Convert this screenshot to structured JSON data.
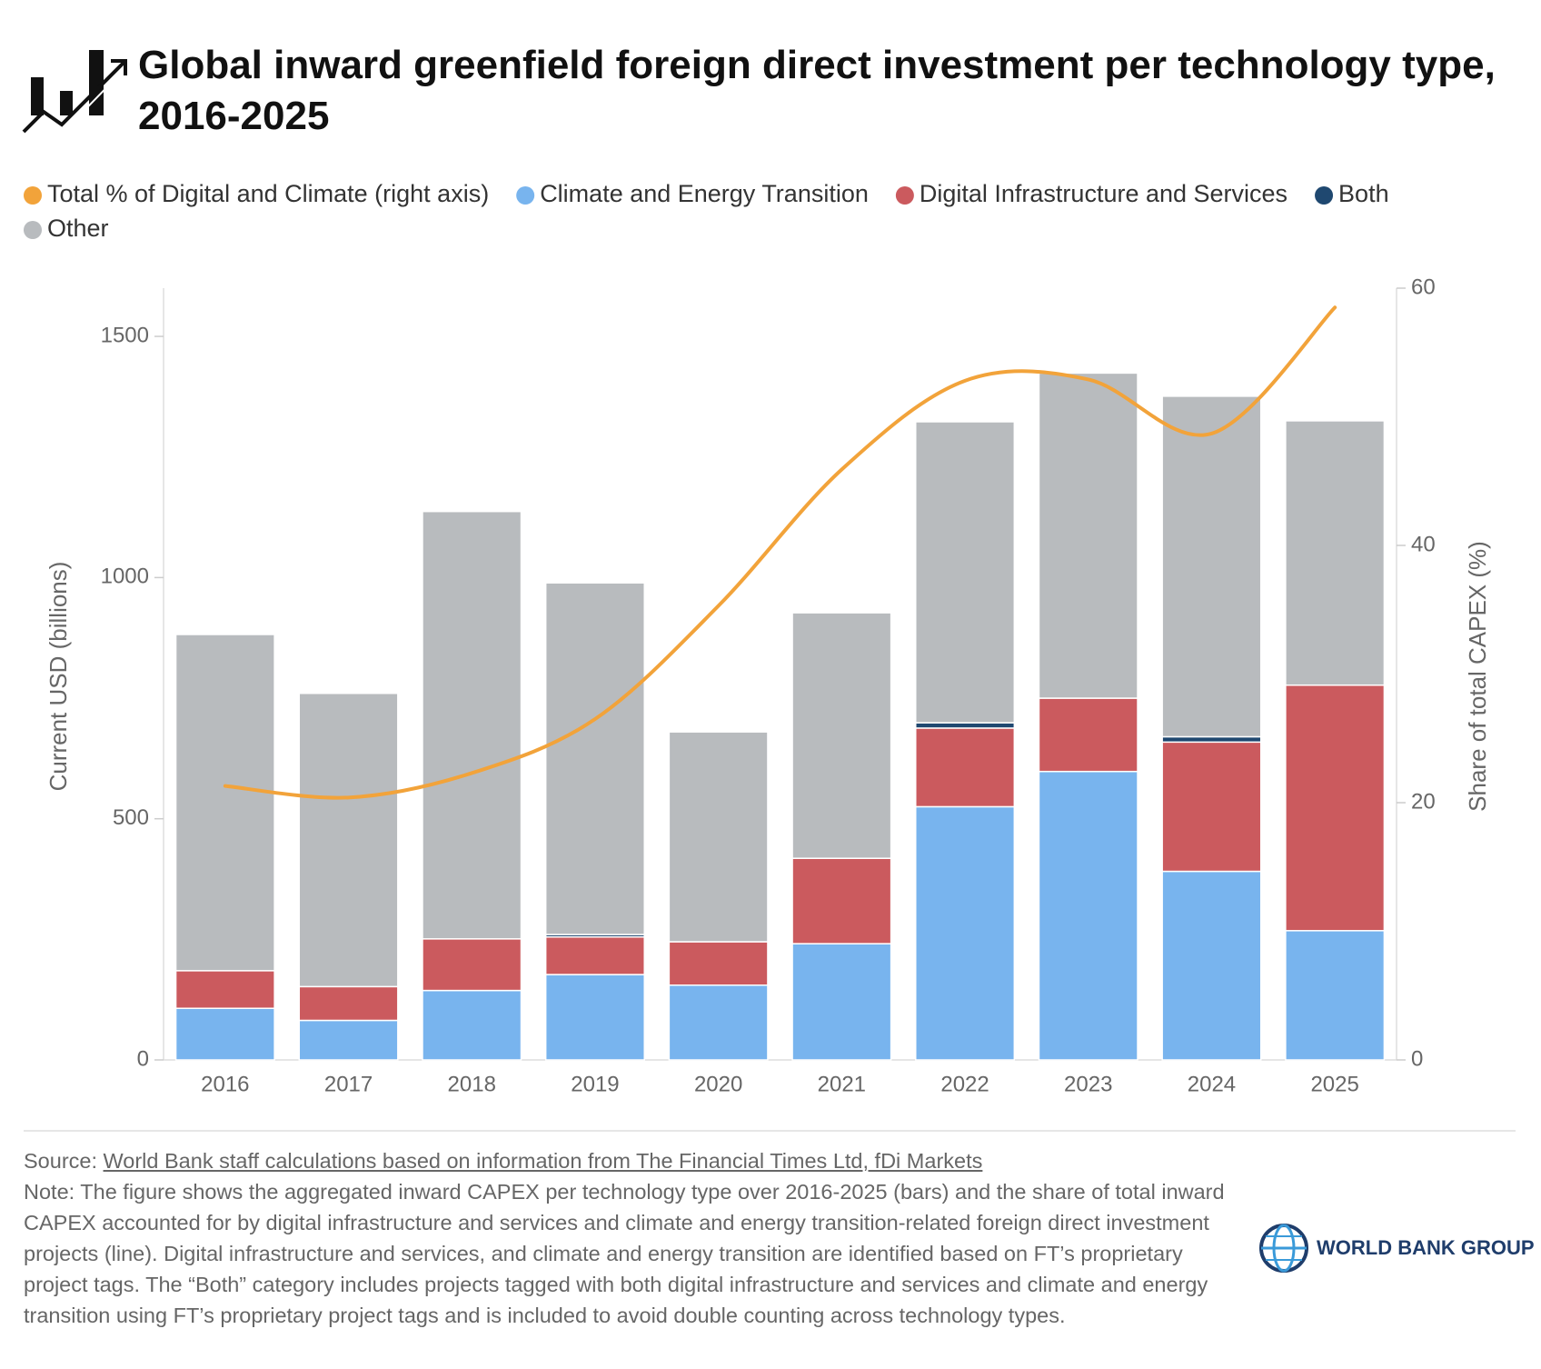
{
  "chart_data": {
    "type": "bar",
    "title": "Global inward greenfield foreign direct investment per technology type, 2016-2025",
    "categories": [
      "2016",
      "2017",
      "2018",
      "2019",
      "2020",
      "2021",
      "2022",
      "2023",
      "2024",
      "2025"
    ],
    "series": [
      {
        "name": "Total % of Digital and Climate (right axis)",
        "color": "#f2a33a",
        "type": "line",
        "axis": "y2",
        "values": [
          21.3,
          20.4,
          22.3,
          26.5,
          35.3,
          45.9,
          52.8,
          52.9,
          48.7,
          58.5
        ]
      },
      {
        "name": "Climate and Energy Transition",
        "color": "#78b4ee",
        "values": [
          107,
          82,
          144,
          177,
          155,
          241,
          525,
          598,
          391,
          268
        ]
      },
      {
        "name": "Digital Infrastructure and Services",
        "color": "#cb5a5e",
        "values": [
          78,
          70,
          107,
          78,
          90,
          177,
          163,
          152,
          268,
          509
        ]
      },
      {
        "name": "Both",
        "color": "#1f4870",
        "values": [
          0,
          0,
          0,
          5,
          0,
          0,
          11,
          0,
          11,
          0
        ]
      },
      {
        "name": "Other",
        "color": "#b8bbbe",
        "values": [
          697,
          608,
          886,
          729,
          435,
          509,
          624,
          674,
          706,
          548
        ]
      }
    ],
    "ylabel": "Current USD (billions)",
    "y2label": "Share of total CAPEX (%)",
    "ylim": [
      0,
      1600
    ],
    "yticks": [
      0,
      500,
      1000,
      1500
    ],
    "y2lim": [
      0,
      60
    ],
    "y2ticks": [
      0,
      20,
      40,
      60
    ],
    "grid": false,
    "source_label": "Source:",
    "source": "World Bank staff calculations based on information from The Financial Times Ltd, fDi Markets",
    "note": "Note: The figure shows the aggregated inward CAPEX per technology type over 2016-2025 (bars) and the share of total inward CAPEX accounted for by digital infrastructure and services and climate and energy transition-related foreign direct investment projects (line). Digital infrastructure and services, and climate and energy transition are identified based on FT’s proprietary project tags. The “Both” category includes projects tagged with both digital infrastructure and services and climate and energy transition using FT’s proprietary project tags and is included to avoid double counting across technology types."
  },
  "logo": "WORLD BANK GROUP"
}
